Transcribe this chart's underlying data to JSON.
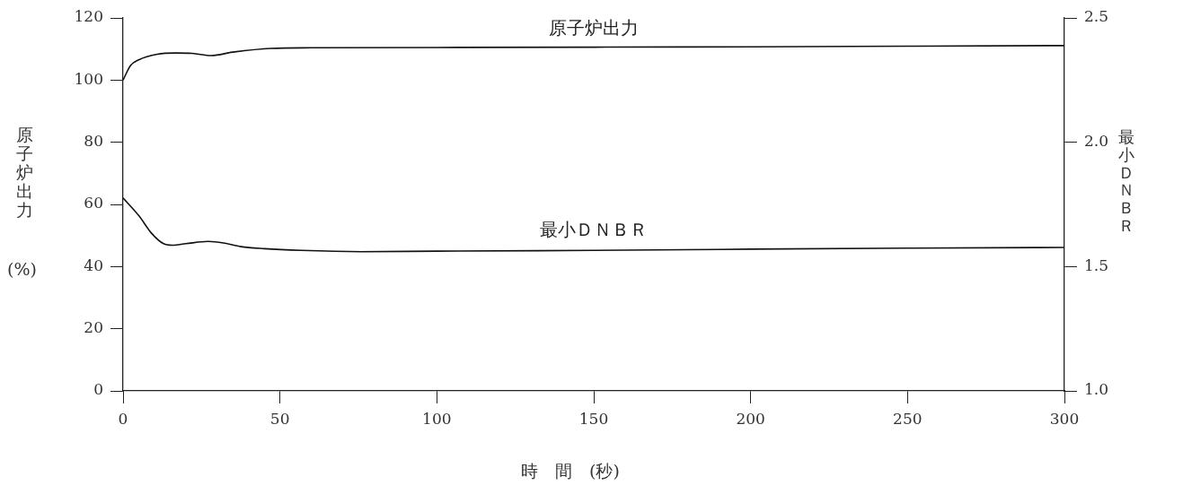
{
  "chart_data": {
    "type": "line",
    "xlabel": "時　間　(秒)",
    "ylabel": "原子炉出力\n(%)",
    "y2label": "最小ＤＮＢＲ",
    "xlim": [
      0,
      300
    ],
    "xticks": [
      0,
      50,
      100,
      150,
      200,
      250,
      300
    ],
    "ylim": [
      0,
      120
    ],
    "yticks": [
      0,
      20,
      40,
      60,
      80,
      100,
      120
    ],
    "y2lim": [
      1.0,
      2.5
    ],
    "y2ticks": [
      {
        "value": 1.0,
        "label": "1.0"
      },
      {
        "value": 1.5,
        "label": "1.5"
      },
      {
        "value": 2.0,
        "label": "2.0"
      },
      {
        "value": 2.5,
        "label": "2.5"
      }
    ],
    "grid": false,
    "legend": false,
    "marker": "none",
    "line_style": "solid",
    "series": [
      {
        "name": "原子炉出力",
        "color": "#111111",
        "x": [
          0,
          2.4,
          5,
          10.9,
          16.7,
          22,
          28.1,
          35,
          47,
          60,
          100,
          150,
          200,
          250,
          300
        ],
        "values": [
          100,
          104.7,
          106.5,
          108.3,
          108.7,
          108.6,
          107.9,
          109,
          110.2,
          110.4,
          110.5,
          110.6,
          110.7,
          110.9,
          111.1
        ]
      },
      {
        "name": "最小ＤＮＢＲ",
        "color": "#111111",
        "axis": "y2",
        "x": [
          0,
          5.2,
          9,
          12.9,
          15.7,
          20,
          27.1,
          32,
          37.6,
          45,
          56.7,
          75.7,
          100,
          150,
          200,
          250,
          300
        ],
        "values": [
          1.776,
          1.702,
          1.635,
          1.592,
          1.586,
          1.592,
          1.601,
          1.595,
          1.58,
          1.572,
          1.565,
          1.56,
          1.562,
          1.565,
          1.57,
          1.574,
          1.577
        ]
      }
    ]
  }
}
